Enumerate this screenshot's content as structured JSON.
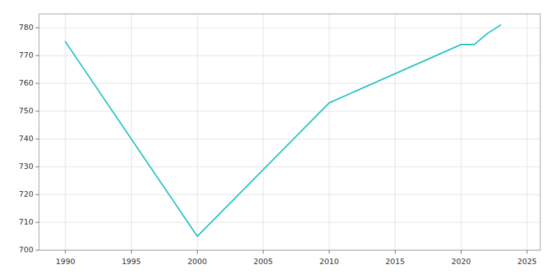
{
  "chart_data": {
    "type": "line",
    "x": [
      1990,
      2000,
      2010,
      2020,
      2021,
      2022,
      2023
    ],
    "values": [
      775,
      705,
      753,
      774,
      774,
      778,
      781
    ],
    "color": "#2BC4C4",
    "xlim": [
      1988,
      2026
    ],
    "ylim": [
      700,
      785
    ],
    "xticks": [
      1990,
      1995,
      2000,
      2005,
      2010,
      2015,
      2020,
      2025
    ],
    "yticks": [
      700,
      710,
      720,
      730,
      740,
      750,
      760,
      770,
      780
    ],
    "grid": true
  }
}
